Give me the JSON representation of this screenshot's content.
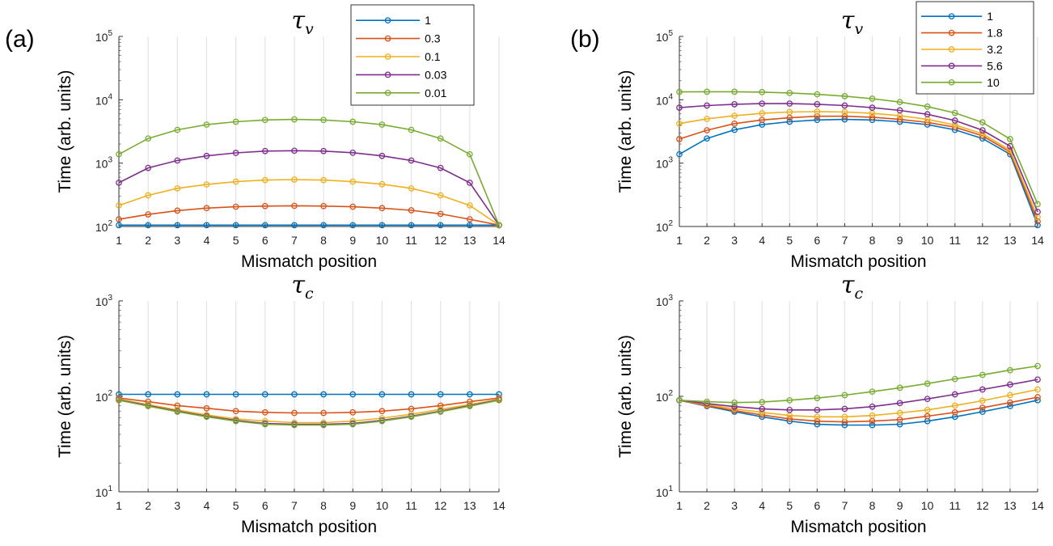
{
  "chart_data": [
    {
      "panel": "(a)",
      "type": "line",
      "title": "τ",
      "title_sub": "v",
      "xlabel": "Mismatch position",
      "ylabel": "Time (arb. units)",
      "yscale": "log",
      "ylim": [
        100,
        100000
      ],
      "xlim": [
        1,
        14
      ],
      "x": [
        1,
        2,
        3,
        4,
        5,
        6,
        7,
        8,
        9,
        10,
        11,
        12,
        13,
        14
      ],
      "ytick_exponents": [
        2,
        3,
        4,
        5
      ],
      "grid": "x",
      "legend": "top-right",
      "series": [
        {
          "name": "1",
          "color": "#0072BD",
          "values": [
            105,
            105,
            105,
            105,
            105,
            105,
            105,
            105,
            105,
            105,
            105,
            105,
            105,
            105
          ]
        },
        {
          "name": "0.3",
          "color": "#D95319",
          "values": [
            130,
            155,
            178,
            195,
            205,
            210,
            212,
            210,
            205,
            195,
            180,
            158,
            130,
            105
          ]
        },
        {
          "name": "0.1",
          "color": "#EDB120",
          "values": [
            215,
            310,
            400,
            460,
            510,
            540,
            550,
            540,
            510,
            465,
            400,
            310,
            215,
            105
          ]
        },
        {
          "name": "0.03",
          "color": "#7E2F8E",
          "values": [
            490,
            840,
            1100,
            1300,
            1450,
            1550,
            1570,
            1550,
            1460,
            1300,
            1100,
            840,
            490,
            105
          ]
        },
        {
          "name": "0.01",
          "color": "#77AC30",
          "values": [
            1380,
            2450,
            3350,
            4050,
            4500,
            4800,
            4900,
            4800,
            4500,
            4050,
            3350,
            2450,
            1380,
            105
          ]
        }
      ]
    },
    {
      "panel": "(a)",
      "type": "line",
      "title": "τ",
      "title_sub": "c",
      "xlabel": "Mismatch position",
      "ylabel": "Time (arb. units)",
      "yscale": "log",
      "ylim": [
        10,
        1000
      ],
      "xlim": [
        1,
        14
      ],
      "x": [
        1,
        2,
        3,
        4,
        5,
        6,
        7,
        8,
        9,
        10,
        11,
        12,
        13,
        14
      ],
      "ytick_exponents": [
        1,
        2,
        3
      ],
      "grid": "x",
      "series": [
        {
          "name": "1",
          "color": "#0072BD",
          "values": [
            105,
            105,
            105,
            105,
            105,
            105,
            105,
            105,
            105,
            105,
            105,
            105,
            105,
            105
          ]
        },
        {
          "name": "0.3",
          "color": "#D95319",
          "values": [
            96,
            88,
            80,
            75,
            70,
            68,
            67,
            67,
            68,
            70,
            74,
            80,
            88,
            96
          ]
        },
        {
          "name": "0.1",
          "color": "#EDB120",
          "values": [
            93,
            82,
            72,
            64,
            58,
            55,
            53,
            53,
            55,
            59,
            65,
            73,
            82,
            93
          ]
        },
        {
          "name": "0.03",
          "color": "#7E2F8E",
          "values": [
            92,
            80,
            70,
            62,
            56,
            52,
            51,
            51,
            52,
            56,
            62,
            70,
            80,
            92
          ]
        },
        {
          "name": "0.01",
          "color": "#77AC30",
          "values": [
            91,
            79,
            69,
            61,
            55,
            51,
            50,
            50,
            51,
            55,
            61,
            69,
            79,
            91
          ]
        }
      ]
    },
    {
      "panel": "(b)",
      "type": "line",
      "title": "τ",
      "title_sub": "v",
      "xlabel": "Mismatch position",
      "ylabel": "Time (arb. units)",
      "yscale": "log",
      "ylim": [
        100,
        100000
      ],
      "xlim": [
        1,
        14
      ],
      "x": [
        1,
        2,
        3,
        4,
        5,
        6,
        7,
        8,
        9,
        10,
        11,
        12,
        13,
        14
      ],
      "ytick_exponents": [
        2,
        3,
        4,
        5
      ],
      "grid": "x",
      "legend": "top-right",
      "series": [
        {
          "name": "1",
          "color": "#0072BD",
          "values": [
            1380,
            2450,
            3350,
            4050,
            4500,
            4800,
            4900,
            4800,
            4500,
            4050,
            3350,
            2450,
            1380,
            105
          ]
        },
        {
          "name": "1.8",
          "color": "#D95319",
          "values": [
            2400,
            3300,
            4200,
            4800,
            5200,
            5500,
            5500,
            5300,
            4900,
            4400,
            3700,
            2700,
            1500,
            120
          ]
        },
        {
          "name": "3.2",
          "color": "#EDB120",
          "values": [
            4200,
            5000,
            5600,
            6100,
            6400,
            6500,
            6400,
            6100,
            5600,
            4900,
            4000,
            2900,
            1600,
            140
          ]
        },
        {
          "name": "5.6",
          "color": "#7E2F8E",
          "values": [
            7500,
            8100,
            8500,
            8700,
            8700,
            8500,
            8100,
            7500,
            6800,
            5900,
            4700,
            3300,
            1850,
            170
          ]
        },
        {
          "name": "10",
          "color": "#77AC30",
          "values": [
            13300,
            13400,
            13400,
            13200,
            12800,
            12200,
            11400,
            10400,
            9200,
            7800,
            6200,
            4400,
            2400,
            225
          ]
        }
      ]
    },
    {
      "panel": "(b)",
      "type": "line",
      "title": "τ",
      "title_sub": "c",
      "xlabel": "Mismatch position",
      "ylabel": "Time (arb. units)",
      "yscale": "log",
      "ylim": [
        10,
        1000
      ],
      "xlim": [
        1,
        14
      ],
      "x": [
        1,
        2,
        3,
        4,
        5,
        6,
        7,
        8,
        9,
        10,
        11,
        12,
        13,
        14
      ],
      "ytick_exponents": [
        1,
        2,
        3
      ],
      "grid": "x",
      "series": [
        {
          "name": "1",
          "color": "#0072BD",
          "values": [
            91,
            79,
            69,
            61,
            55,
            51,
            50,
            50,
            51,
            55,
            61,
            69,
            79,
            91
          ]
        },
        {
          "name": "1.8",
          "color": "#D95319",
          "values": [
            91,
            80,
            71,
            64,
            58,
            55,
            54,
            55,
            57,
            62,
            68,
            76,
            86,
            98
          ]
        },
        {
          "name": "3.2",
          "color": "#EDB120",
          "values": [
            91,
            82,
            74,
            68,
            63,
            61,
            61,
            63,
            67,
            72,
            80,
            90,
            103,
            118
          ]
        },
        {
          "name": "5.6",
          "color": "#7E2F8E",
          "values": [
            91,
            84,
            78,
            74,
            72,
            72,
            74,
            78,
            85,
            94,
            105,
            118,
            133,
            150
          ]
        },
        {
          "name": "10",
          "color": "#77AC30",
          "values": [
            91,
            88,
            86,
            87,
            91,
            96,
            103,
            112,
            123,
            136,
            152,
            168,
            188,
            208
          ]
        }
      ]
    }
  ]
}
